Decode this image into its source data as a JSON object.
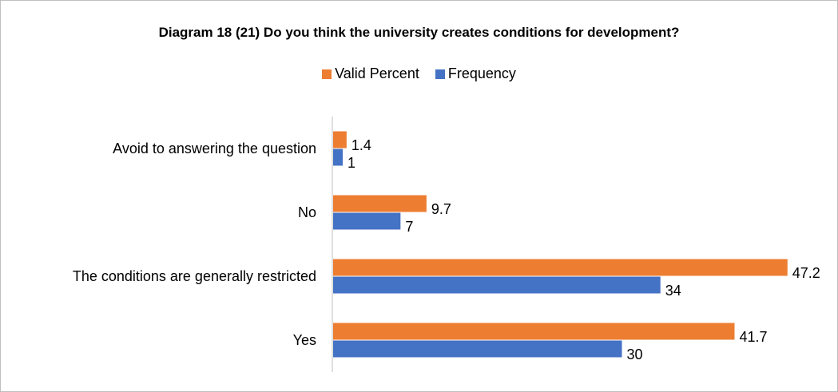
{
  "chart_data": {
    "type": "bar",
    "orientation": "horizontal",
    "title": "Diagram 18 (21) Do you think the university creates conditions for development?",
    "categories": [
      "Avoid to answering  the question",
      "No",
      "The conditions are generally restricted",
      "Yes"
    ],
    "series": [
      {
        "name": "Valid Percent",
        "color": "#ed7d31",
        "values": [
          1.4,
          9.7,
          47.2,
          41.7
        ],
        "labels": [
          "1.4",
          "9.7",
          "47.2",
          "41.7"
        ]
      },
      {
        "name": "Frequency",
        "color": "#4472c4",
        "values": [
          1,
          7,
          34,
          30
        ],
        "labels": [
          "1",
          "7",
          "34",
          "30"
        ]
      }
    ],
    "xlim": [
      0,
      50
    ],
    "grid": false,
    "legend_position": "top"
  }
}
